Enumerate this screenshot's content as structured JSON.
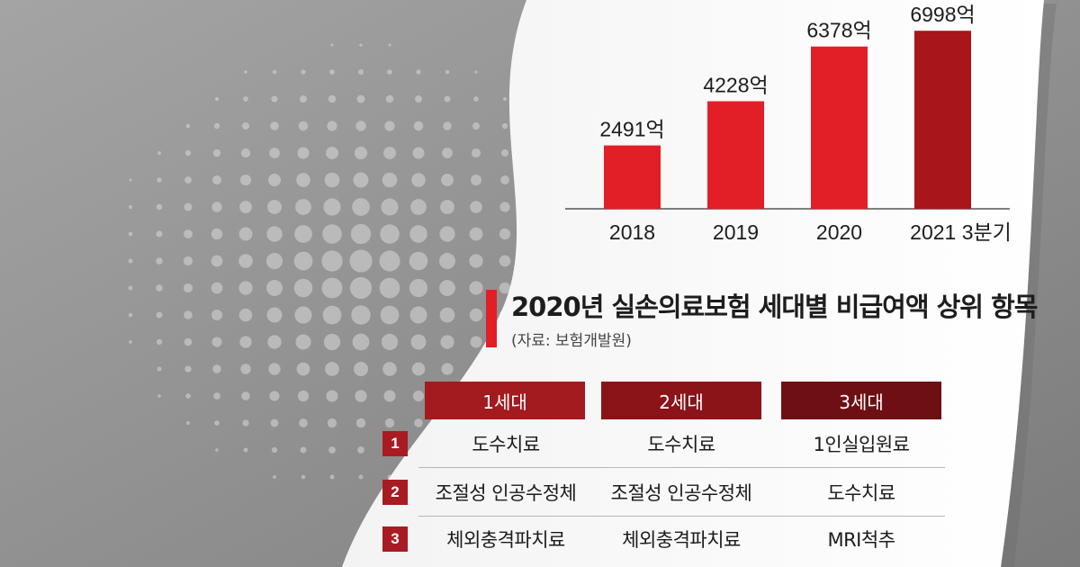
{
  "chart_data": {
    "type": "bar",
    "categories": [
      "2018",
      "2019",
      "2020",
      "2021 3분기"
    ],
    "values": [
      2491,
      4228,
      6378,
      6998
    ],
    "value_labels": [
      "2491억",
      "4228억",
      "6378억",
      "6998억"
    ],
    "title": "",
    "xlabel": "",
    "ylabel": "",
    "ylim": [
      0,
      7500
    ],
    "grid": false,
    "legend": "none",
    "colors": [
      "#e21f26",
      "#e21f26",
      "#e21f26",
      "#a8151b"
    ]
  },
  "table": {
    "title": "2020년 실손의료보험 세대별 비급여액 상위 항목",
    "source": "(자료: 보험개발원)",
    "columns": [
      "1세대",
      "2세대",
      "3세대"
    ],
    "rows": [
      {
        "rank": "1",
        "cells": [
          "도수치료",
          "도수치료",
          "1인실입원료"
        ]
      },
      {
        "rank": "2",
        "cells": [
          "조절성 인공수정체",
          "조절성 인공수정체",
          "도수치료"
        ]
      },
      {
        "rank": "3",
        "cells": [
          "체외충격파치료",
          "체외충격파치료",
          "MRI척추"
        ]
      }
    ]
  },
  "colors": {
    "accent_red": "#e21f26",
    "dark_red": "#a8151b",
    "header_red_1": "#a31a1f",
    "header_red_2": "#8a1418",
    "header_red_3": "#6e1013"
  }
}
